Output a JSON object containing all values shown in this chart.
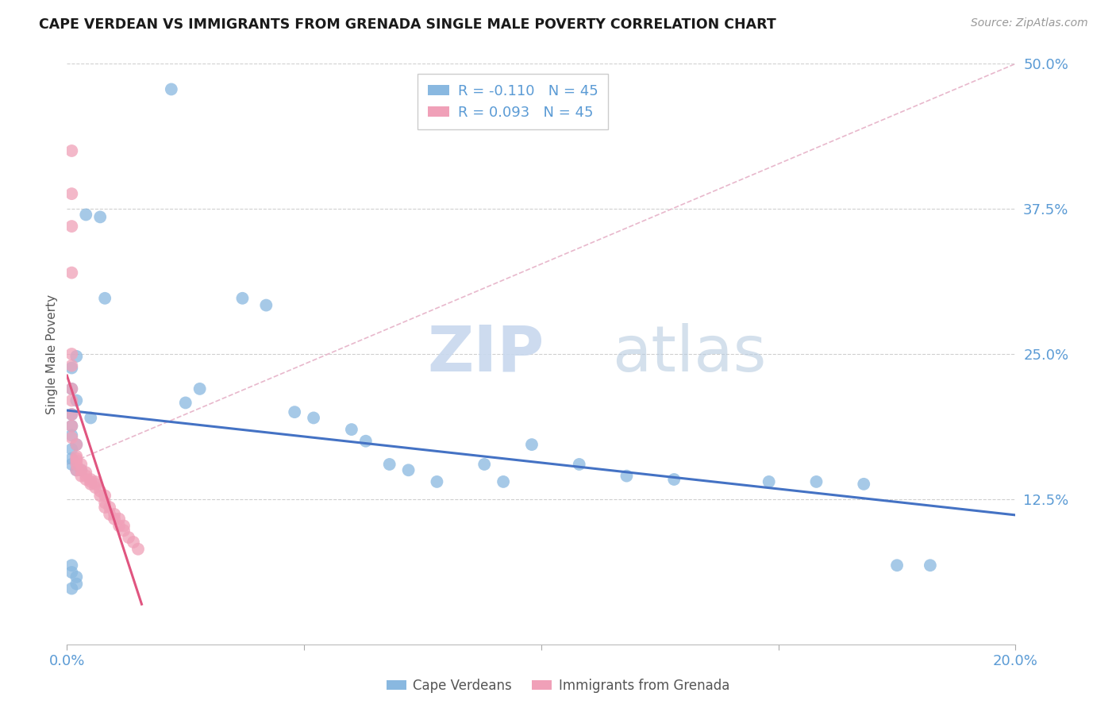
{
  "title": "CAPE VERDEAN VS IMMIGRANTS FROM GRENADA SINGLE MALE POVERTY CORRELATION CHART",
  "source": "Source: ZipAtlas.com",
  "ylabel": "Single Male Poverty",
  "legend_label1": "Cape Verdeans",
  "legend_label2": "Immigrants from Grenada",
  "r1": -0.11,
  "n1": 45,
  "r2": 0.093,
  "n2": 45,
  "xmin": 0.0,
  "xmax": 0.2,
  "ymin": 0.0,
  "ymax": 0.5,
  "yticks": [
    0.0,
    0.125,
    0.25,
    0.375,
    0.5
  ],
  "xticks": [
    0.0,
    0.05,
    0.1,
    0.15,
    0.2
  ],
  "color_blue": "#89b8e0",
  "color_pink": "#f0a0b8",
  "color_line_blue": "#4472c4",
  "color_line_pink": "#e05580",
  "color_gridline": "#d0d0d0",
  "color_axis_labels": "#5b9bd5",
  "color_refline": "#e8b8cc",
  "watermark_color": "#ccd9ee",
  "background_color": "#ffffff",
  "cape_verdean_x": [
    0.022,
    0.004,
    0.007,
    0.008,
    0.002,
    0.001,
    0.001,
    0.002,
    0.001,
    0.001,
    0.001,
    0.002,
    0.001,
    0.001,
    0.001,
    0.002,
    0.003,
    0.037,
    0.042,
    0.028,
    0.025,
    0.005,
    0.048,
    0.052,
    0.06,
    0.063,
    0.068,
    0.088,
    0.072,
    0.078,
    0.092,
    0.098,
    0.108,
    0.118,
    0.128,
    0.148,
    0.158,
    0.168,
    0.175,
    0.182,
    0.001,
    0.001,
    0.002,
    0.002,
    0.001
  ],
  "cape_verdean_y": [
    0.478,
    0.37,
    0.368,
    0.298,
    0.248,
    0.238,
    0.22,
    0.21,
    0.198,
    0.188,
    0.18,
    0.172,
    0.168,
    0.16,
    0.155,
    0.15,
    0.15,
    0.298,
    0.292,
    0.22,
    0.208,
    0.195,
    0.2,
    0.195,
    0.185,
    0.175,
    0.155,
    0.155,
    0.15,
    0.14,
    0.14,
    0.172,
    0.155,
    0.145,
    0.142,
    0.14,
    0.14,
    0.138,
    0.068,
    0.068,
    0.068,
    0.062,
    0.058,
    0.052,
    0.048
  ],
  "grenada_x": [
    0.001,
    0.001,
    0.001,
    0.001,
    0.001,
    0.001,
    0.001,
    0.001,
    0.001,
    0.001,
    0.001,
    0.002,
    0.002,
    0.002,
    0.002,
    0.002,
    0.002,
    0.003,
    0.003,
    0.003,
    0.004,
    0.004,
    0.004,
    0.005,
    0.005,
    0.005,
    0.006,
    0.006,
    0.006,
    0.007,
    0.007,
    0.008,
    0.008,
    0.008,
    0.009,
    0.009,
    0.01,
    0.01,
    0.011,
    0.011,
    0.012,
    0.012,
    0.013,
    0.014,
    0.015
  ],
  "grenada_y": [
    0.425,
    0.388,
    0.36,
    0.32,
    0.25,
    0.24,
    0.22,
    0.21,
    0.198,
    0.188,
    0.178,
    0.172,
    0.162,
    0.16,
    0.158,
    0.155,
    0.15,
    0.155,
    0.15,
    0.145,
    0.148,
    0.145,
    0.142,
    0.142,
    0.14,
    0.138,
    0.14,
    0.138,
    0.135,
    0.132,
    0.128,
    0.128,
    0.122,
    0.118,
    0.118,
    0.112,
    0.112,
    0.108,
    0.108,
    0.102,
    0.102,
    0.098,
    0.092,
    0.088,
    0.082
  ],
  "refline_x": [
    0.0,
    0.2
  ],
  "refline_y": [
    0.155,
    0.5
  ]
}
